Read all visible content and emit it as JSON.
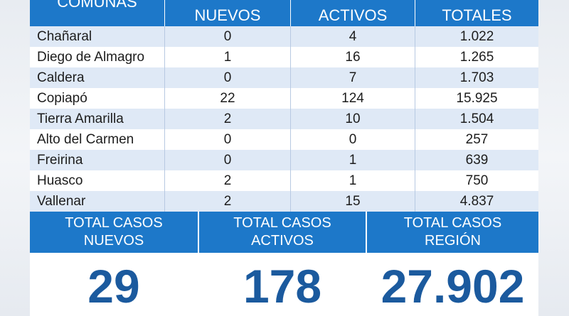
{
  "table": {
    "headers": {
      "comunas": "COMUNAS",
      "nuevos": "NUEVOS",
      "activos": "ACTIVOS",
      "totales": "TOTALES"
    },
    "rows": [
      {
        "comuna": "Chañaral",
        "nuevos": "0",
        "activos": "4",
        "totales": "1.022"
      },
      {
        "comuna": "Diego de Almagro",
        "nuevos": "1",
        "activos": "16",
        "totales": "1.265"
      },
      {
        "comuna": "Caldera",
        "nuevos": "0",
        "activos": "7",
        "totales": "1.703"
      },
      {
        "comuna": "Copiapó",
        "nuevos": "22",
        "activos": "124",
        "totales": "15.925"
      },
      {
        "comuna": "Tierra Amarilla",
        "nuevos": "2",
        "activos": "10",
        "totales": "1.504"
      },
      {
        "comuna": "Alto del Carmen",
        "nuevos": "0",
        "activos": "0",
        "totales": "257"
      },
      {
        "comuna": "Freirina",
        "nuevos": "0",
        "activos": "1",
        "totales": "639"
      },
      {
        "comuna": "Huasco",
        "nuevos": "2",
        "activos": "1",
        "totales": "750"
      },
      {
        "comuna": "Vallenar",
        "nuevos": "2",
        "activos": "15",
        "totales": "4.837"
      }
    ]
  },
  "summary": {
    "nuevos": {
      "line1": "TOTAL CASOS",
      "line2": "NUEVOS",
      "value": "29"
    },
    "activos": {
      "line1": "TOTAL CASOS",
      "line2": "ACTIVOS",
      "value": "178"
    },
    "region": {
      "line1": "TOTAL CASOS",
      "line2": "REGIÓN",
      "value": "27.902"
    }
  },
  "colors": {
    "header_blue": "#1d78c9",
    "row_alt": "#dfe9f6",
    "big_number": "#1b5a9e"
  }
}
